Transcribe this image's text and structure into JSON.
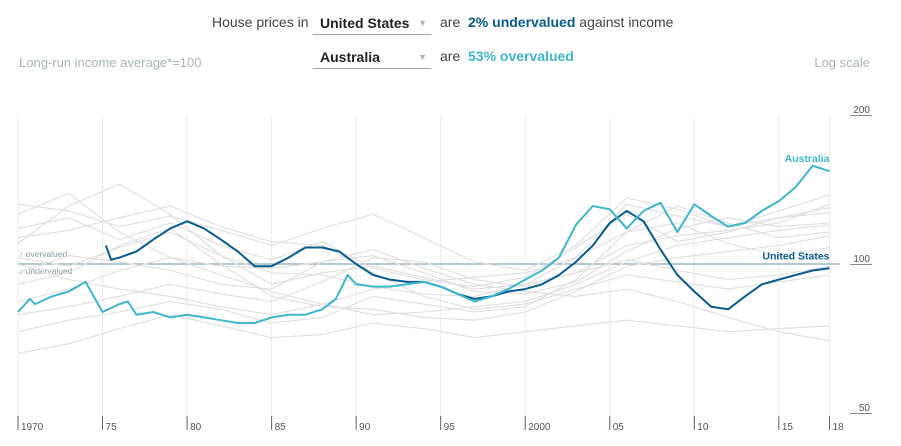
{
  "header": {
    "prefix": "House prices in",
    "select1": "United States",
    "mid1": "are",
    "value1": "2% undervalued",
    "suffix1": "against income",
    "select2": "Australia",
    "mid2": "are",
    "value2": "53% overvalued",
    "left_note": "Long-run income average*=100",
    "right_note": "Log scale"
  },
  "colors": {
    "us": "#0a5c8a",
    "au": "#3fb6c9",
    "others": "#dedede",
    "baseline": "#8fa9b8"
  },
  "chart_data": {
    "type": "line",
    "y_scale": "log",
    "ylim": [
      50,
      200
    ],
    "y_ticks": [
      {
        "value": 200,
        "label": "200"
      },
      {
        "value": 100,
        "label": "100"
      },
      {
        "value": 50,
        "label": "50"
      }
    ],
    "x_range": [
      1970,
      2018.5
    ],
    "x_ticks": [
      {
        "value": 1970,
        "label": "1970"
      },
      {
        "value": 1975,
        "label": "75"
      },
      {
        "value": 1980,
        "label": "80"
      },
      {
        "value": 1985,
        "label": "85"
      },
      {
        "value": 1990,
        "label": "90"
      },
      {
        "value": 1995,
        "label": "95"
      },
      {
        "value": 2000,
        "label": "2000"
      },
      {
        "value": 2005,
        "label": "05"
      },
      {
        "value": 2010,
        "label": "10"
      },
      {
        "value": 2015,
        "label": "15"
      },
      {
        "value": 2018,
        "label": "18"
      }
    ],
    "baseline": 100,
    "baseline_labels": {
      "above": "↑ overvalued",
      "below": "↓ undervalued"
    },
    "series": [
      {
        "name": "United States",
        "highlight": "us",
        "x": [
          1975.2,
          1975.5,
          1976,
          1977,
          1978,
          1979,
          1980,
          1981,
          1982,
          1983,
          1984,
          1985,
          1986,
          1987,
          1988,
          1989,
          1990,
          1991,
          1992,
          1993,
          1994,
          1995,
          1996,
          1997,
          1998,
          1999,
          2000,
          2001,
          2002,
          2003,
          2004,
          2005,
          2006,
          2007,
          2008,
          2009,
          2010,
          2011,
          2012,
          2013,
          2014,
          2015,
          2016,
          2017,
          2018
        ],
        "y": [
          109,
          102,
          103,
          106,
          112,
          118,
          122,
          118,
          112,
          106,
          99,
          99,
          103,
          108,
          108,
          106,
          100,
          95,
          93,
          92,
          92,
          90,
          87,
          85,
          86,
          88,
          89,
          91,
          95,
          101,
          109,
          121,
          128,
          122,
          107,
          95,
          88,
          82,
          81,
          86,
          91,
          93,
          95,
          97,
          98
        ]
      },
      {
        "name": "Australia",
        "highlight": "au",
        "x": [
          1970,
          1970.7,
          1971,
          1972,
          1973,
          1974,
          1975,
          1976,
          1976.5,
          1977,
          1978,
          1979,
          1980,
          1981,
          1982,
          1983,
          1984,
          1985,
          1986,
          1987,
          1988,
          1988.8,
          1989.5,
          1990,
          1991,
          1992,
          1993,
          1994,
          1995,
          1996,
          1997,
          1998,
          1999,
          2000,
          2001,
          2002,
          2003,
          2004,
          2005,
          2006,
          2007,
          2008,
          2009,
          2010,
          2011,
          2012,
          2013,
          2014,
          2015,
          2016,
          2017,
          2018
        ],
        "y": [
          80,
          85,
          83,
          86,
          88,
          92,
          80,
          83,
          84,
          79,
          80,
          78,
          79,
          78,
          77,
          76,
          76,
          78,
          79,
          79,
          81,
          85,
          95,
          91,
          90,
          90,
          91,
          92,
          90,
          87,
          84,
          86,
          89,
          93,
          97,
          103,
          120,
          131,
          129,
          118,
          128,
          133,
          116,
          132,
          125,
          119,
          121,
          128,
          134,
          143,
          158,
          154
        ]
      },
      {
        "name": "",
        "x": [
          1970,
          1973,
          1976,
          1979,
          1982,
          1985,
          1988,
          1991,
          1994,
          1997,
          2000,
          2003,
          2006,
          2009,
          2012,
          2015,
          2018
        ],
        "y": [
          118,
          124,
          112,
          121,
          109,
          102,
          111,
          98,
          93,
          90,
          94,
          108,
          126,
          111,
          116,
          124,
          130
        ]
      },
      {
        "name": "",
        "x": [
          1970,
          1973,
          1976,
          1979,
          1982,
          1985,
          1988,
          1991,
          1994,
          1997,
          2000,
          2003,
          2006,
          2009,
          2012,
          2015,
          2018
        ],
        "y": [
          103,
          99,
          108,
          116,
          104,
          96,
          95,
          90,
          87,
          86,
          91,
          103,
          132,
          125,
          119,
          128,
          138
        ]
      },
      {
        "name": "",
        "x": [
          1970,
          1973,
          1976,
          1979,
          1982,
          1985,
          1988,
          1991,
          1994,
          1997,
          2000,
          2003,
          2006,
          2009,
          2012,
          2015,
          2018
        ],
        "y": [
          84,
          89,
          97,
          103,
          95,
          88,
          83,
          79,
          80,
          82,
          84,
          91,
          101,
          109,
          113,
          117,
          120
        ]
      },
      {
        "name": "",
        "x": [
          1970,
          1973,
          1976,
          1979,
          1982,
          1985,
          1988,
          1991,
          1994,
          1997,
          2000,
          2003,
          2006,
          2009,
          2012,
          2015,
          2018
        ],
        "y": [
          110,
          131,
          145,
          126,
          104,
          91,
          96,
          99,
          94,
          89,
          91,
          96,
          102,
          97,
          93,
          95,
          99
        ]
      },
      {
        "name": "",
        "x": [
          1970,
          1973,
          1976,
          1979,
          1982,
          1985,
          1988,
          1991,
          1994,
          1997,
          2000,
          2003,
          2006,
          2009,
          2012,
          2015,
          2018
        ],
        "y": [
          73,
          77,
          80,
          84,
          81,
          76,
          78,
          86,
          83,
          80,
          82,
          93,
          116,
          131,
          121,
          113,
          116
        ]
      },
      {
        "name": "",
        "x": [
          1970,
          1973,
          1976,
          1979,
          1982,
          1985,
          1988,
          1991,
          1994,
          1997,
          2000,
          2003,
          2006,
          2009,
          2012,
          2015,
          2018
        ],
        "y": [
          66,
          69,
          74,
          79,
          75,
          71,
          72,
          76,
          74,
          71,
          73,
          75,
          77,
          75,
          73,
          74,
          75
        ]
      },
      {
        "name": "",
        "x": [
          1970,
          1973,
          1976,
          1979,
          1982,
          1985,
          1988,
          1991,
          1994,
          1997,
          2000,
          2003,
          2006,
          2009,
          2012,
          2015,
          2018
        ],
        "y": [
          132,
          128,
          119,
          125,
          117,
          109,
          118,
          126,
          113,
          101,
          97,
          109,
          136,
          129,
          119,
          124,
          127
        ]
      },
      {
        "name": "",
        "x": [
          1970,
          1973,
          1976,
          1979,
          1982,
          1985,
          1988,
          1991,
          1994,
          1997,
          2000,
          2003,
          2006,
          2009,
          2012,
          2015,
          2018
        ],
        "y": [
          96,
          104,
          101,
          97,
          91,
          89,
          101,
          107,
          98,
          91,
          88,
          86,
          89,
          84,
          78,
          73,
          70
        ]
      },
      {
        "name": "",
        "x": [
          1970,
          1973,
          1976,
          1979,
          1982,
          1985,
          1988,
          1991,
          1994,
          1997,
          2000,
          2003,
          2006,
          2009,
          2012,
          2015,
          2018
        ],
        "y": [
          91,
          96,
          109,
          118,
          100,
          86,
          82,
          81,
          78,
          77,
          80,
          88,
          99,
          103,
          106,
          109,
          114
        ]
      },
      {
        "name": "",
        "x": [
          1970,
          1973,
          1976,
          1979,
          1982,
          1985,
          1988,
          1991,
          1994,
          1997,
          2000,
          2003,
          2006,
          2009,
          2012,
          2015,
          2018
        ],
        "y": [
          126,
          139,
          116,
          103,
          99,
          98,
          101,
          104,
          96,
          88,
          87,
          92,
          106,
          118,
          124,
          119,
          121
        ]
      },
      {
        "name": "",
        "x": [
          1970,
          1973,
          1976,
          1979,
          1982,
          1985,
          1988,
          1991,
          1994,
          1997,
          2000,
          2003,
          2006,
          2009,
          2012,
          2015,
          2018
        ],
        "y": [
          100,
          93,
          89,
          86,
          82,
          79,
          83,
          89,
          92,
          94,
          96,
          103,
          116,
          121,
          110,
          104,
          108
        ]
      },
      {
        "name": "",
        "x": [
          1970,
          1973,
          1976,
          1979,
          1982,
          1985,
          1988,
          1991,
          1994,
          1997,
          2000,
          2003,
          2006,
          2009,
          2012,
          2015,
          2018
        ],
        "y": [
          113,
          117,
          124,
          131,
          119,
          111,
          109,
          96,
          86,
          81,
          83,
          89,
          95,
          92,
          89,
          92,
          95
        ]
      },
      {
        "name": "",
        "x": [
          1970,
          1973,
          1976,
          1979,
          1982,
          1985,
          1988,
          1991,
          1994,
          1997,
          2000,
          2003,
          2006,
          2009,
          2012,
          2015,
          2018
        ],
        "y": [
          79,
          82,
          86,
          91,
          87,
          84,
          92,
          103,
          101,
          93,
          90,
          96,
          109,
          114,
          117,
          121,
          132
        ]
      }
    ],
    "labels": [
      {
        "text": "Australia",
        "series": "Australia"
      },
      {
        "text": "United States",
        "series": "United States"
      }
    ]
  }
}
